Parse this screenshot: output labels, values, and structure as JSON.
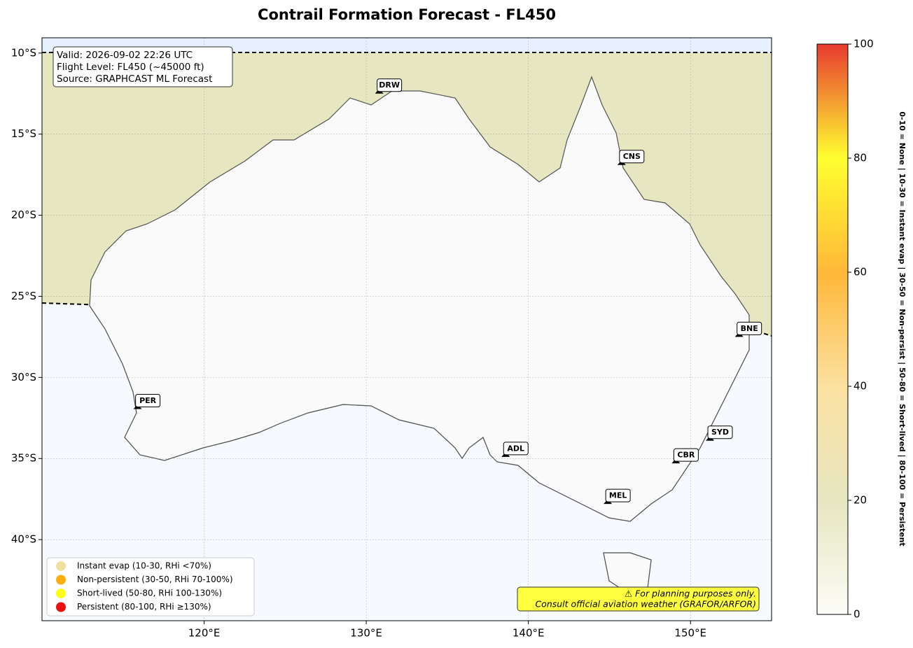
{
  "title": "Contrail Formation Forecast - FL450",
  "map": {
    "lon_range": [
      110,
      155
    ],
    "lat_range": [
      -45,
      -9.06
    ],
    "lon_ticks": [
      {
        "value": 120,
        "label": "120°E"
      },
      {
        "value": 130,
        "label": "130°E"
      },
      {
        "value": 140,
        "label": "140°E"
      },
      {
        "value": 150,
        "label": "150°E"
      }
    ],
    "lat_ticks": [
      {
        "value": -10,
        "label": "10°S"
      },
      {
        "value": -15,
        "label": "15°S"
      },
      {
        "value": -20,
        "label": "20°S"
      },
      {
        "value": -25,
        "label": "25°S"
      },
      {
        "value": -30,
        "label": "30°S"
      },
      {
        "value": -35,
        "label": "35°S"
      },
      {
        "value": -40,
        "label": "40°S"
      }
    ],
    "grid": true
  },
  "info": [
    "Valid: 2026-09-02 22:26 UTC",
    "Flight Level: FL450 (~45000 ft)",
    "Source: GRAPHCAST ML Forecast"
  ],
  "cities": [
    {
      "label": "DRW",
      "lon": 130.8,
      "lat": -12.5
    },
    {
      "label": "CNS",
      "lon": 145.75,
      "lat": -16.9
    },
    {
      "label": "BNE",
      "lon": 153.0,
      "lat": -27.5
    },
    {
      "label": "SYD",
      "lon": 151.2,
      "lat": -33.9
    },
    {
      "label": "CBR",
      "lon": 149.1,
      "lat": -35.3
    },
    {
      "label": "MEL",
      "lon": 144.9,
      "lat": -37.8
    },
    {
      "label": "ADL",
      "lon": 138.6,
      "lat": -34.9
    },
    {
      "label": "PER",
      "lon": 115.9,
      "lat": -31.95
    }
  ],
  "legend": [
    {
      "label": "Instant evap (10-30, RHi <70%)",
      "color": "#f0e0a0"
    },
    {
      "label": "Non-persistent (30-50, RHi 70-100%)",
      "color": "#ffb010"
    },
    {
      "label": "Short-lived (50-80, RHi 100-130%)",
      "color": "#ffff10"
    },
    {
      "label": "Persistent (80-100, RHi ≥130%)",
      "color": "#e81010"
    }
  ],
  "disclaimer": [
    "⚠ For planning purposes only.",
    "Consult official aviation weather (GRAFOR/ARFOR)"
  ],
  "colorbar": {
    "range": [
      0,
      100
    ],
    "ticks": [
      0,
      20,
      40,
      60,
      80,
      100
    ],
    "label": "0-10 = None  |  10-30 = Instant evap  |  30-50 = Non-persist  |  50-80 = Short-lived  |  80-100 = Persistent"
  }
}
